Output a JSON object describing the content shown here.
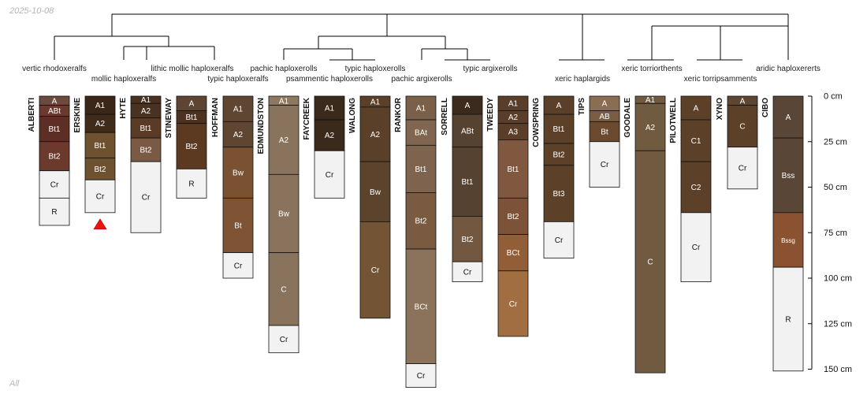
{
  "date_label": "2025-10-08",
  "footer_label": "All",
  "depth_axis": {
    "max_cm": 150,
    "ticks": [
      0,
      25,
      50,
      75,
      100,
      125,
      150
    ],
    "unit": "cm"
  },
  "taxa": [
    "vertic rhodoxeralfs",
    "mollic haploxeralfs",
    "lithic mollic haploxeralfs",
    "typic haploxeralfs",
    "pachic haploxerolls",
    "psammentic haploxerolls",
    "typic haploxerolls",
    "pachic argixerolls",
    "typic argixerolls",
    "xeric haplargids",
    "xeric torriorthents",
    "xeric torripsamments",
    "aridic haploxererts"
  ],
  "profiles": [
    {
      "name": "ALBERTI",
      "horizons": [
        {
          "name": "A",
          "top": 0,
          "bottom": 5,
          "color": "#6e4a3e"
        },
        {
          "name": "ABt",
          "top": 5,
          "bottom": 11,
          "color": "#6a3a2e"
        },
        {
          "name": "Bt1",
          "top": 11,
          "bottom": 25,
          "color": "#5d2e24"
        },
        {
          "name": "Bt2",
          "top": 25,
          "bottom": 41,
          "color": "#6b3a2c"
        },
        {
          "name": "Cr",
          "top": 41,
          "bottom": 56,
          "color": "#f2f2f2"
        },
        {
          "name": "R",
          "top": 56,
          "bottom": 71,
          "color": "#f2f2f2"
        }
      ]
    },
    {
      "name": "ERSKINE",
      "horizons": [
        {
          "name": "A1",
          "top": 0,
          "bottom": 10,
          "color": "#3b2618"
        },
        {
          "name": "A2",
          "top": 10,
          "bottom": 20,
          "color": "#402a1a"
        },
        {
          "name": "Bt1",
          "top": 20,
          "bottom": 34,
          "color": "#6e5230"
        },
        {
          "name": "Bt2",
          "top": 34,
          "bottom": 46,
          "color": "#6e5230"
        },
        {
          "name": "Cr",
          "top": 46,
          "bottom": 64,
          "color": "#f2f2f2"
        }
      ]
    },
    {
      "name": "HYTE",
      "horizons": [
        {
          "name": "A1",
          "top": 0,
          "bottom": 4,
          "color": "#4a3220"
        },
        {
          "name": "A2",
          "top": 4,
          "bottom": 12,
          "color": "#4a3220"
        },
        {
          "name": "Bt1",
          "top": 12,
          "bottom": 23,
          "color": "#5a3c26"
        },
        {
          "name": "Bt2",
          "top": 23,
          "bottom": 36,
          "color": "#7a5a44"
        },
        {
          "name": "Cr",
          "top": 36,
          "bottom": 75,
          "color": "#f2f2f2"
        }
      ]
    },
    {
      "name": "STINEWAY",
      "horizons": [
        {
          "name": "A",
          "top": 0,
          "bottom": 8,
          "color": "#5e4432"
        },
        {
          "name": "Bt1",
          "top": 8,
          "bottom": 15,
          "color": "#4e3220"
        },
        {
          "name": "Bt2",
          "top": 15,
          "bottom": 40,
          "color": "#5c3a22"
        },
        {
          "name": "R",
          "top": 40,
          "bottom": 56,
          "color": "#f2f2f2"
        }
      ]
    },
    {
      "name": "HOFFMAN",
      "horizons": [
        {
          "name": "A1",
          "top": 0,
          "bottom": 14,
          "color": "#5e4632"
        },
        {
          "name": "A2",
          "top": 14,
          "bottom": 28,
          "color": "#5e4632"
        },
        {
          "name": "Bw",
          "top": 28,
          "bottom": 56,
          "color": "#7a5232"
        },
        {
          "name": "Bt",
          "top": 56,
          "bottom": 86,
          "color": "#7e5434"
        },
        {
          "name": "Cr",
          "top": 86,
          "bottom": 100,
          "color": "#f2f2f2"
        }
      ]
    },
    {
      "name": "EDMUNDSTON",
      "horizons": [
        {
          "name": "A1",
          "top": 0,
          "bottom": 5,
          "color": "#8e7862"
        },
        {
          "name": "A2",
          "top": 5,
          "bottom": 43,
          "color": "#8a735c"
        },
        {
          "name": "Bw",
          "top": 43,
          "bottom": 86,
          "color": "#8a735c"
        },
        {
          "name": "C",
          "top": 86,
          "bottom": 126,
          "color": "#8a735c"
        },
        {
          "name": "Cr",
          "top": 126,
          "bottom": 141,
          "color": "#f2f2f2"
        }
      ]
    },
    {
      "name": "FAYCREEK",
      "horizons": [
        {
          "name": "A1",
          "top": 0,
          "bottom": 13,
          "color": "#3a2a1c"
        },
        {
          "name": "A2",
          "top": 13,
          "bottom": 30,
          "color": "#3a2a1c"
        },
        {
          "name": "Cr",
          "top": 30,
          "bottom": 56,
          "color": "#f2f2f2"
        }
      ]
    },
    {
      "name": "WALONG",
      "horizons": [
        {
          "name": "A1",
          "top": 0,
          "bottom": 6,
          "color": "#5a4028"
        },
        {
          "name": "A2",
          "top": 6,
          "bottom": 36,
          "color": "#5a4028"
        },
        {
          "name": "Bw",
          "top": 36,
          "bottom": 69,
          "color": "#5c442c"
        },
        {
          "name": "Cr",
          "top": 69,
          "bottom": 122,
          "color": "#735434"
        }
      ]
    },
    {
      "name": "RANKOR",
      "horizons": [
        {
          "name": "A1",
          "top": 0,
          "bottom": 13,
          "color": "#7a6048"
        },
        {
          "name": "BAt",
          "top": 13,
          "bottom": 27,
          "color": "#806650"
        },
        {
          "name": "Bt1",
          "top": 27,
          "bottom": 53,
          "color": "#7e644e"
        },
        {
          "name": "Bt2",
          "top": 53,
          "bottom": 84,
          "color": "#7a5a40"
        },
        {
          "name": "BCt",
          "top": 84,
          "bottom": 147,
          "color": "#8a735a"
        },
        {
          "name": "Cr",
          "top": 147,
          "bottom": 160,
          "color": "#f2f2f2"
        }
      ]
    },
    {
      "name": "SORRELL",
      "horizons": [
        {
          "name": "A",
          "top": 0,
          "bottom": 10,
          "color": "#3c2a1c"
        },
        {
          "name": "ABt",
          "top": 10,
          "bottom": 28,
          "color": "#564230"
        },
        {
          "name": "Bt1",
          "top": 28,
          "bottom": 66,
          "color": "#564230"
        },
        {
          "name": "Bt2",
          "top": 66,
          "bottom": 91,
          "color": "#725840"
        },
        {
          "name": "Cr",
          "top": 91,
          "bottom": 102,
          "color": "#f2f2f2"
        }
      ]
    },
    {
      "name": "TWEEDY",
      "horizons": [
        {
          "name": "A1",
          "top": 0,
          "bottom": 8,
          "color": "#5a3e2a"
        },
        {
          "name": "A2",
          "top": 8,
          "bottom": 15,
          "color": "#5a3e2a"
        },
        {
          "name": "A3",
          "top": 15,
          "bottom": 24,
          "color": "#5a3e2a"
        },
        {
          "name": "Bt1",
          "top": 24,
          "bottom": 56,
          "color": "#805840"
        },
        {
          "name": "Bt2",
          "top": 56,
          "bottom": 76,
          "color": "#7c5238"
        },
        {
          "name": "BCt",
          "top": 76,
          "bottom": 96,
          "color": "#925e38"
        },
        {
          "name": "Cr",
          "top": 96,
          "bottom": 132,
          "color": "#a06e40"
        }
      ]
    },
    {
      "name": "COWSPRING",
      "horizons": [
        {
          "name": "A",
          "top": 0,
          "bottom": 10,
          "color": "#5a4028"
        },
        {
          "name": "Bt1",
          "top": 10,
          "bottom": 26,
          "color": "#5c4028"
        },
        {
          "name": "Bt2",
          "top": 26,
          "bottom": 38,
          "color": "#5c4028"
        },
        {
          "name": "Bt3",
          "top": 38,
          "bottom": 69,
          "color": "#5c4028"
        },
        {
          "name": "Cr",
          "top": 69,
          "bottom": 89,
          "color": "#f2f2f2"
        }
      ]
    },
    {
      "name": "TIPS",
      "horizons": [
        {
          "name": "A",
          "top": 0,
          "bottom": 8,
          "color": "#8a6e52"
        },
        {
          "name": "AB",
          "top": 8,
          "bottom": 14,
          "color": "#7a5e44"
        },
        {
          "name": "Bt",
          "top": 14,
          "bottom": 25,
          "color": "#6c4a30"
        },
        {
          "name": "Cr",
          "top": 25,
          "bottom": 50,
          "color": "#f2f2f2"
        }
      ]
    },
    {
      "name": "GOODALE",
      "horizons": [
        {
          "name": "A1",
          "top": 0,
          "bottom": 4,
          "color": "#705a40"
        },
        {
          "name": "A2",
          "top": 4,
          "bottom": 30,
          "color": "#705a40"
        },
        {
          "name": "C",
          "top": 30,
          "bottom": 152,
          "color": "#705a40"
        }
      ]
    },
    {
      "name": "PILOTWELL",
      "horizons": [
        {
          "name": "A",
          "top": 0,
          "bottom": 13,
          "color": "#5c4028"
        },
        {
          "name": "C1",
          "top": 13,
          "bottom": 36,
          "color": "#5c4028"
        },
        {
          "name": "C2",
          "top": 36,
          "bottom": 64,
          "color": "#5c4028"
        },
        {
          "name": "Cr",
          "top": 64,
          "bottom": 102,
          "color": "#f2f2f2"
        }
      ]
    },
    {
      "name": "XYNO",
      "horizons": [
        {
          "name": "A",
          "top": 0,
          "bottom": 5,
          "color": "#5e4632"
        },
        {
          "name": "C",
          "top": 5,
          "bottom": 28,
          "color": "#5c4028"
        },
        {
          "name": "Cr",
          "top": 28,
          "bottom": 51,
          "color": "#f2f2f2"
        }
      ]
    },
    {
      "name": "CIBO",
      "horizons": [
        {
          "name": "A",
          "top": 0,
          "bottom": 23,
          "color": "#5a4636"
        },
        {
          "name": "Bss",
          "top": 23,
          "bottom": 64,
          "color": "#5a4636"
        },
        {
          "name": "Bssg",
          "top": 64,
          "bottom": 94,
          "color": "#8a5230"
        },
        {
          "name": "R",
          "top": 94,
          "bottom": 151,
          "color": "#f2f2f2"
        }
      ]
    }
  ]
}
